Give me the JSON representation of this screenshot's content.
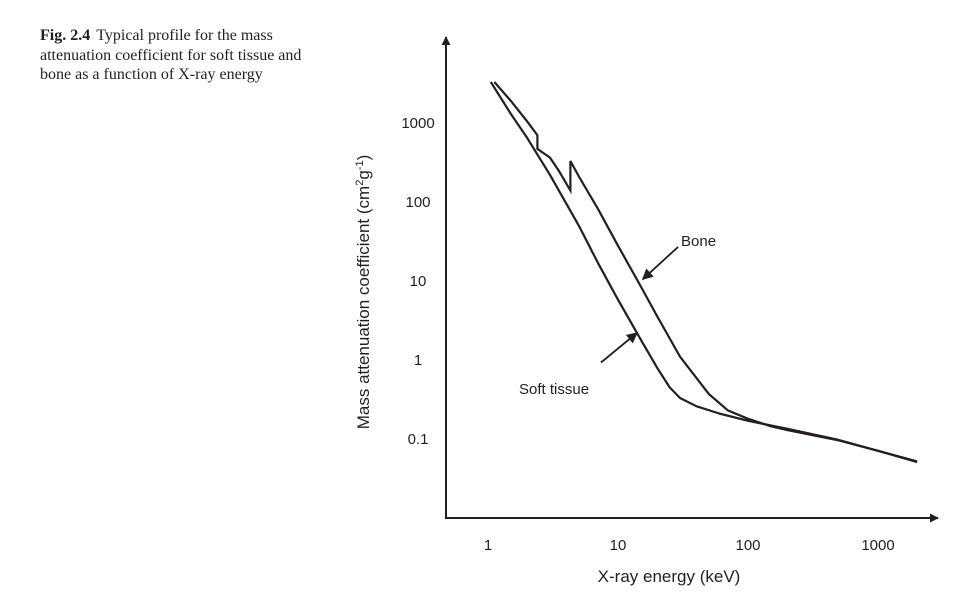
{
  "caption": {
    "label": "Fig. 2.4",
    "text": "Typical profile for the mass attenuation coefficient for soft tissue and bone as a function of X-ray energy"
  },
  "chart_data": {
    "type": "line",
    "xscale": "log",
    "yscale": "log",
    "xlabel": "X-ray energy (keV)",
    "ylabel": "Mass attenuation coefficient (cm²g⁻¹)",
    "ylabel_parts": {
      "pre": "Mass attenuation coefficient (cm",
      "sup1": "2",
      "mid": "g",
      "sup2": "-1",
      "post": ")"
    },
    "xlim": [
      0.75,
      3500
    ],
    "ylim": [
      0.012,
      20000
    ],
    "xticks": [
      {
        "value": 1,
        "label": "1"
      },
      {
        "value": 10,
        "label": "10"
      },
      {
        "value": 100,
        "label": "100"
      },
      {
        "value": 1000,
        "label": "1000"
      }
    ],
    "yticks": [
      {
        "value": 0.1,
        "label": "0.1"
      },
      {
        "value": 1,
        "label": "1"
      },
      {
        "value": 10,
        "label": "10"
      },
      {
        "value": 100,
        "label": "100"
      },
      {
        "value": 1000,
        "label": "1000"
      }
    ],
    "grid": false,
    "series": [
      {
        "key": "bone",
        "x": [
          1.12,
          1.5,
          2,
          2.4,
          2.4,
          3,
          3.5,
          4.3,
          4.3,
          5,
          7,
          10,
          15,
          20,
          30,
          50,
          70,
          100,
          150,
          200,
          500,
          1000,
          2000
        ],
        "y": [
          3300,
          1900,
          1050,
          700,
          470,
          365,
          250,
          140,
          330,
          210,
          82,
          28,
          8.5,
          3.6,
          1.1,
          0.37,
          0.23,
          0.18,
          0.145,
          0.13,
          0.096,
          0.071,
          0.051
        ]
      },
      {
        "key": "soft_tissue",
        "x": [
          1.05,
          1.5,
          2,
          3,
          5,
          7,
          10,
          15,
          20,
          25,
          30,
          40,
          60,
          100,
          150,
          200,
          500,
          1000,
          2000
        ],
        "y": [
          3300,
          1300,
          650,
          220,
          50,
          17,
          5.8,
          1.8,
          0.8,
          0.45,
          0.33,
          0.26,
          0.21,
          0.17,
          0.148,
          0.135,
          0.097,
          0.071,
          0.052
        ]
      }
    ],
    "annotations": [
      {
        "key": "bone",
        "text": "Bone",
        "arrow_tip": [
          15.5,
          10.5
        ],
        "arrow_tail": [
          29,
          27
        ]
      },
      {
        "key": "soft_tissue",
        "text": "Soft tissue",
        "arrow_tip": [
          14,
          2.2
        ],
        "arrow_tail": [
          7.4,
          0.93
        ]
      }
    ]
  }
}
